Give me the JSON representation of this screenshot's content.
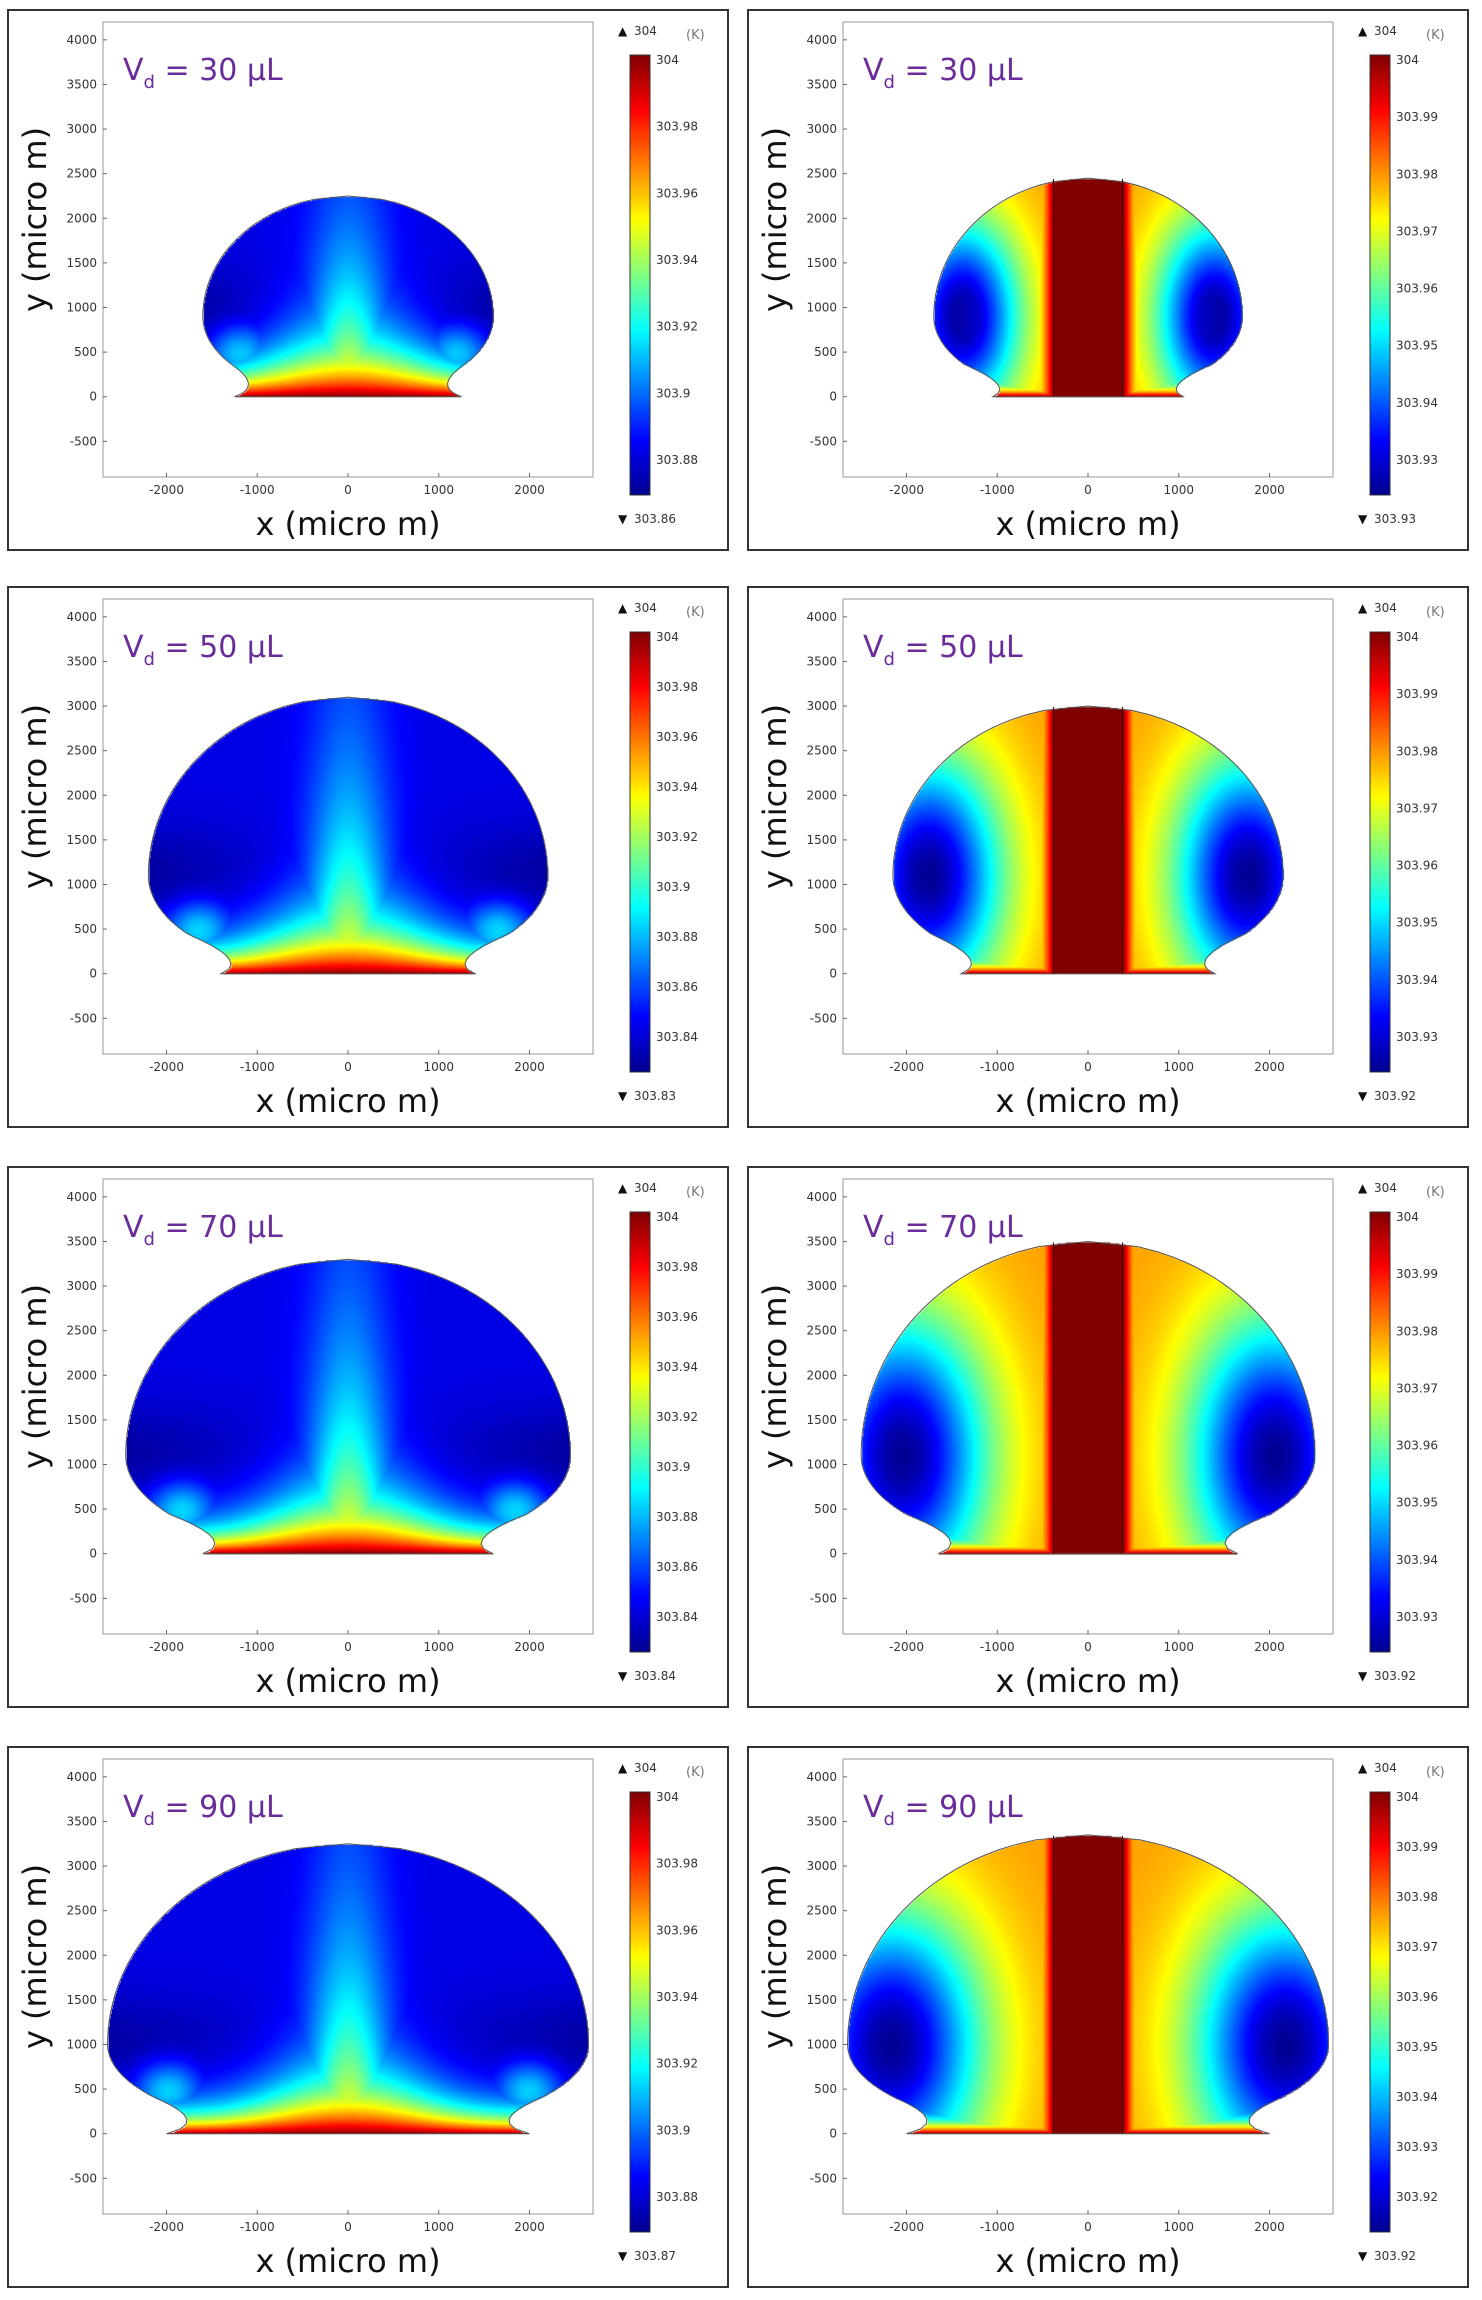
{
  "chart_data": [
    {
      "type": "heatmap",
      "label_main": "V",
      "label_sub": "d",
      "label_rest": " = 30 μL",
      "xlabel": "x (micro m)",
      "ylabel": "y (micro m)",
      "xticks": [
        -2000,
        -1000,
        0,
        1000,
        2000
      ],
      "yticks": [
        -500,
        0,
        500,
        1000,
        1500,
        2000,
        2500,
        3000,
        3500,
        4000
      ],
      "xlim": [
        -2700,
        2700
      ],
      "ylim": [
        -900,
        4200
      ],
      "droplet": {
        "half_base": 1250,
        "half_width": 1600,
        "max_width_y": 900,
        "height": 2250
      },
      "field": "conduction",
      "colorbar": {
        "max_label": "304",
        "min_label": "303.86",
        "unit": "(K)",
        "ticks": [
          "304",
          "303.98",
          "303.96",
          "303.94",
          "303.92",
          "303.9",
          "303.88"
        ]
      }
    },
    {
      "type": "heatmap",
      "label_main": "V",
      "label_sub": "d",
      "label_rest": " = 30 μL",
      "xlabel": "x (micro m)",
      "ylabel": "y (micro m)",
      "xticks": [
        -2000,
        -1000,
        0,
        1000,
        2000
      ],
      "yticks": [
        -500,
        0,
        500,
        1000,
        1500,
        2000,
        2500,
        3000,
        3500,
        4000
      ],
      "xlim": [
        -2700,
        2700
      ],
      "ylim": [
        -900,
        4200
      ],
      "droplet": {
        "half_base": 1050,
        "half_width": 1700,
        "max_width_y": 900,
        "height": 2450
      },
      "field": "convection",
      "colorbar": {
        "max_label": "304",
        "min_label": "303.93",
        "unit": "(K)",
        "ticks": [
          "304",
          "303.99",
          "303.98",
          "303.97",
          "303.96",
          "303.95",
          "303.94",
          "303.93"
        ]
      }
    },
    {
      "type": "heatmap",
      "label_main": "V",
      "label_sub": "d",
      "label_rest": " = 50 μL",
      "xlabel": "x (micro m)",
      "ylabel": "y (micro m)",
      "xticks": [
        -2000,
        -1000,
        0,
        1000,
        2000
      ],
      "yticks": [
        -500,
        0,
        500,
        1000,
        1500,
        2000,
        2500,
        3000,
        3500,
        4000
      ],
      "xlim": [
        -2700,
        2700
      ],
      "ylim": [
        -900,
        4200
      ],
      "droplet": {
        "half_base": 1400,
        "half_width": 2200,
        "max_width_y": 1100,
        "height": 3100
      },
      "field": "conduction",
      "colorbar": {
        "max_label": "304",
        "min_label": "303.83",
        "unit": "(K)",
        "ticks": [
          "304",
          "303.98",
          "303.96",
          "303.94",
          "303.92",
          "303.9",
          "303.88",
          "303.86",
          "303.84"
        ]
      }
    },
    {
      "type": "heatmap",
      "label_main": "V",
      "label_sub": "d",
      "label_rest": " = 50 μL",
      "xlabel": "x (micro m)",
      "ylabel": "y (micro m)",
      "xticks": [
        -2000,
        -1000,
        0,
        1000,
        2000
      ],
      "yticks": [
        -500,
        0,
        500,
        1000,
        1500,
        2000,
        2500,
        3000,
        3500,
        4000
      ],
      "xlim": [
        -2700,
        2700
      ],
      "ylim": [
        -900,
        4200
      ],
      "droplet": {
        "half_base": 1400,
        "half_width": 2150,
        "max_width_y": 1100,
        "height": 3000
      },
      "field": "convection",
      "colorbar": {
        "max_label": "304",
        "min_label": "303.92",
        "unit": "(K)",
        "ticks": [
          "304",
          "303.99",
          "303.98",
          "303.97",
          "303.96",
          "303.95",
          "303.94",
          "303.93"
        ]
      }
    },
    {
      "type": "heatmap",
      "label_main": "V",
      "label_sub": "d",
      "label_rest": " = 70 μL",
      "xlabel": "x (micro m)",
      "ylabel": "y (micro m)",
      "xticks": [
        -2000,
        -1000,
        0,
        1000,
        2000
      ],
      "yticks": [
        -500,
        0,
        500,
        1000,
        1500,
        2000,
        2500,
        3000,
        3500,
        4000
      ],
      "xlim": [
        -2700,
        2700
      ],
      "ylim": [
        -900,
        4200
      ],
      "droplet": {
        "half_base": 1600,
        "half_width": 2450,
        "max_width_y": 1100,
        "height": 3300
      },
      "field": "conduction",
      "colorbar": {
        "max_label": "304",
        "min_label": "303.84",
        "unit": "(K)",
        "ticks": [
          "304",
          "303.98",
          "303.96",
          "303.94",
          "303.92",
          "303.9",
          "303.88",
          "303.86",
          "303.84"
        ]
      }
    },
    {
      "type": "heatmap",
      "label_main": "V",
      "label_sub": "d",
      "label_rest": " = 70 μL",
      "xlabel": "x (micro m)",
      "ylabel": "y (micro m)",
      "xticks": [
        -2000,
        -1000,
        0,
        1000,
        2000
      ],
      "yticks": [
        -500,
        0,
        500,
        1000,
        1500,
        2000,
        2500,
        3000,
        3500,
        4000
      ],
      "xlim": [
        -2700,
        2700
      ],
      "ylim": [
        -900,
        4200
      ],
      "droplet": {
        "half_base": 1650,
        "half_width": 2500,
        "max_width_y": 1100,
        "height": 3500
      },
      "field": "convection",
      "colorbar": {
        "max_label": "304",
        "min_label": "303.92",
        "unit": "(K)",
        "ticks": [
          "304",
          "303.99",
          "303.98",
          "303.97",
          "303.96",
          "303.95",
          "303.94",
          "303.93"
        ]
      }
    },
    {
      "type": "heatmap",
      "label_main": "V",
      "label_sub": "d",
      "label_rest": " = 90 μL",
      "xlabel": "x (micro m)",
      "ylabel": "y (micro m)",
      "xticks": [
        -2000,
        -1000,
        0,
        1000,
        2000
      ],
      "yticks": [
        -500,
        0,
        500,
        1000,
        1500,
        2000,
        2500,
        3000,
        3500,
        4000
      ],
      "xlim": [
        -2700,
        2700
      ],
      "ylim": [
        -900,
        4200
      ],
      "droplet": {
        "half_base": 2000,
        "half_width": 2650,
        "max_width_y": 1000,
        "height": 3250
      },
      "field": "conduction",
      "colorbar": {
        "max_label": "304",
        "min_label": "303.87",
        "unit": "(K)",
        "ticks": [
          "304",
          "303.98",
          "303.96",
          "303.94",
          "303.92",
          "303.9",
          "303.88"
        ]
      }
    },
    {
      "type": "heatmap",
      "label_main": "V",
      "label_sub": "d",
      "label_rest": " = 90 μL",
      "xlabel": "x (micro m)",
      "ylabel": "y (micro m)",
      "xticks": [
        -2000,
        -1000,
        0,
        1000,
        2000
      ],
      "yticks": [
        -500,
        0,
        500,
        1000,
        1500,
        2000,
        2500,
        3000,
        3500,
        4000
      ],
      "xlim": [
        -2700,
        2700
      ],
      "ylim": [
        -900,
        4200
      ],
      "droplet": {
        "half_base": 2000,
        "half_width": 2650,
        "max_width_y": 1000,
        "height": 3350
      },
      "field": "convection",
      "colorbar": {
        "max_label": "304",
        "min_label": "303.92",
        "unit": "(K)",
        "ticks": [
          "304",
          "303.99",
          "303.98",
          "303.97",
          "303.96",
          "303.95",
          "303.94",
          "303.93",
          "303.92"
        ]
      }
    }
  ],
  "colors": {
    "label": "#6a2c9a",
    "frame": "#333333",
    "droplet_edge": "#555555"
  }
}
